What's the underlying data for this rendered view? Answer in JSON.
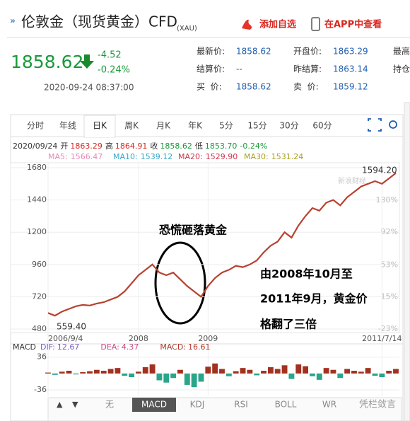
{
  "header": {
    "title": "伦敦金（现货黄金）CFD",
    "code": "(XAU)",
    "add_watch": "添加自选",
    "app_view": "在APP中查看"
  },
  "quote": {
    "price": "1858.62",
    "change": "-4.52",
    "change_pct": "-0.24%",
    "time": "2020-09-24 08:37:00",
    "columns": [
      [
        {
          "label": "最新价:",
          "value": "1858.62"
        },
        {
          "label": "结算价:",
          "value": "--"
        },
        {
          "label": "买  价:",
          "value": "1858.62"
        }
      ],
      [
        {
          "label": "开盘价:",
          "value": "1863.29"
        },
        {
          "label": "昨结算:",
          "value": "1863.14"
        },
        {
          "label": "卖  价:",
          "value": "1859.12"
        }
      ],
      [
        {
          "label": "最高"
        },
        {
          "label": "持仓"
        }
      ]
    ]
  },
  "tabs": [
    "分时",
    "年线",
    "日K",
    "周K",
    "月K",
    "年K",
    "5分",
    "15分",
    "30分",
    "60分"
  ],
  "active_tab": 2,
  "ohlc_line": {
    "date": "2020/09/24",
    "items": [
      {
        "label": "开",
        "value": "1863.29"
      },
      {
        "label": "高",
        "value": "1864.91"
      },
      {
        "label": "收",
        "value": "1858.62"
      },
      {
        "label": "低",
        "value": "1853.70"
      }
    ],
    "pct": "-0.24%"
  },
  "ma": [
    {
      "name": "MA5:",
      "value": "1566.47",
      "color": "#e58ab3"
    },
    {
      "name": "MA10:",
      "value": "1539.12",
      "color": "#35a6c8"
    },
    {
      "name": "MA20:",
      "value": "1529.90",
      "color": "#d0354c"
    },
    {
      "name": "MA30:",
      "value": "1531.24",
      "color": "#a8a020"
    }
  ],
  "chart_data": [
    {
      "type": "line",
      "color": "#b8412f",
      "categories": [
        "2006/9/4",
        null,
        null,
        null,
        null,
        null,
        null,
        null,
        null,
        null,
        null,
        null,
        null,
        "2008",
        null,
        null,
        null,
        null,
        null,
        null,
        null,
        null,
        null,
        "2009",
        null,
        null,
        null,
        null,
        null,
        null,
        null,
        null,
        null,
        null,
        null,
        null,
        null,
        null,
        null,
        null,
        null,
        null,
        null,
        null,
        null,
        null,
        null,
        null,
        "2011/7/14",
        null,
        null
      ],
      "values": [
        600,
        580,
        610,
        630,
        650,
        660,
        655,
        670,
        680,
        700,
        720,
        760,
        820,
        880,
        920,
        960,
        900,
        880,
        900,
        850,
        800,
        760,
        720,
        800,
        860,
        900,
        920,
        950,
        940,
        960,
        990,
        1050,
        1100,
        1130,
        1200,
        1160,
        1250,
        1320,
        1380,
        1360,
        1420,
        1440,
        1400,
        1460,
        1500,
        1540,
        1560,
        1580,
        1560,
        1600,
        1640
      ],
      "ylim": [
        454,
        1717
      ],
      "yticks": [
        480,
        720,
        960,
        1200,
        1440,
        1680
      ],
      "y2lim": [
        -27.4,
        174.7
      ],
      "y2ticks": [
        {
          "value": -23,
          "label": "-23%"
        },
        {
          "value": 15,
          "label": "15%"
        },
        {
          "value": 53,
          "label": "53%"
        },
        {
          "value": 92,
          "label": "92%"
        },
        {
          "value": 130,
          "label": "130%"
        }
      ],
      "high_label": "1594.20",
      "low_label": "559.40",
      "watermark": "新浪财经",
      "annotations": [
        "恐慌砸落黄金",
        "由2008年10月至",
        "2011年9月，黄金价",
        "格翻了三倍"
      ]
    },
    {
      "type": "bar",
      "title": "MACD",
      "indicators": [
        {
          "label": "DIF:",
          "value": "12.67",
          "color": "#7d5cc6"
        },
        {
          "label": "DEA:",
          "value": "4.37",
          "color": "#c84f8a"
        },
        {
          "label": "MACD:",
          "value": "16.61",
          "color": "#b03a2e"
        }
      ],
      "values": [
        2,
        -3,
        4,
        6,
        -2,
        3,
        5,
        8,
        6,
        10,
        12,
        -5,
        -8,
        4,
        14,
        20,
        -15,
        -20,
        -10,
        8,
        -25,
        -30,
        -18,
        15,
        22,
        10,
        -6,
        5,
        12,
        8,
        -4,
        6,
        14,
        10,
        18,
        -12,
        20,
        16,
        -6,
        -14,
        12,
        8,
        -10,
        10,
        6,
        4,
        12,
        -5,
        -8,
        6,
        10
      ],
      "up_color": "#a2311f",
      "down_color": "#2aa58a",
      "ylim": [
        -50,
        48
      ],
      "yticks": [
        -36,
        36
      ]
    }
  ],
  "indicator_nav": [
    "▲",
    "▼"
  ],
  "indicator_tabs": [
    "无",
    "MACD",
    "KDJ",
    "RSI",
    "BOLL",
    "WR"
  ],
  "active_indicator": 1,
  "watermark": "凭栏敛言"
}
